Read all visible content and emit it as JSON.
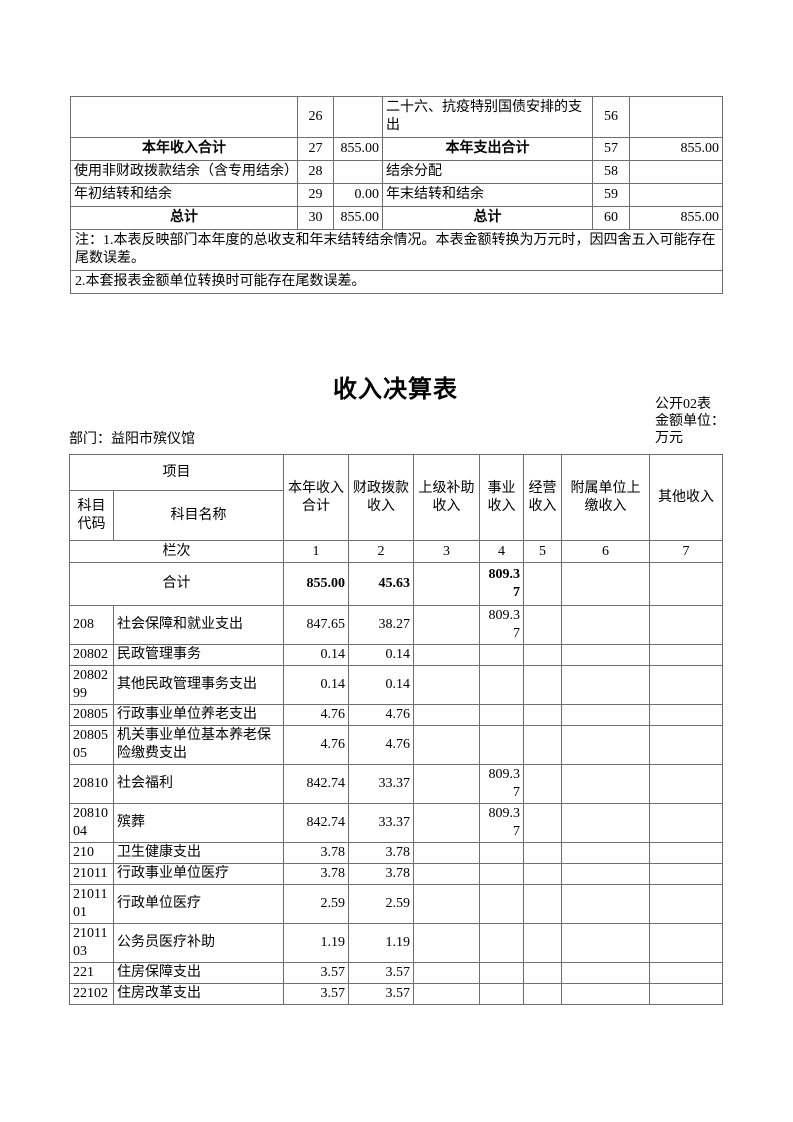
{
  "page": {
    "title": "收入决算表",
    "table_code": "公开02表",
    "unit_label": "金额单位：",
    "unit_value": "万元",
    "department": "部门：益阳市殡仪馆"
  },
  "summary_table": {
    "rows": [
      {
        "left_label": "",
        "left_no": "26",
        "left_amount": "",
        "right_label": "二十六、抗疫特别国债安排的支出",
        "right_no": "56",
        "right_amount": "",
        "emphasis": false
      },
      {
        "left_label": "本年收入合计",
        "left_no": "27",
        "left_amount": "855.00",
        "right_label": "本年支出合计",
        "right_no": "57",
        "right_amount": "855.00",
        "emphasis": true
      },
      {
        "left_label": "使用非财政拨款结余（含专用结余）",
        "left_no": "28",
        "left_amount": "",
        "right_label": "结余分配",
        "right_no": "58",
        "right_amount": "",
        "emphasis": false
      },
      {
        "left_label": "年初结转和结余",
        "left_no": "29",
        "left_amount": "0.00",
        "right_label": "年末结转和结余",
        "right_no": "59",
        "right_amount": "",
        "emphasis": false
      },
      {
        "left_label": "总计",
        "left_no": "30",
        "left_amount": "855.00",
        "right_label": "总计",
        "right_no": "60",
        "right_amount": "855.00",
        "emphasis": true
      }
    ],
    "notes": [
      "注：1.本表反映部门本年度的总收支和年末结转结余情况。本表金额转换为万元时，因四舍五入可能存在尾数误差。",
      "2.本套报表金额单位转换时可能存在尾数误差。"
    ]
  },
  "income_table": {
    "header": {
      "project": "项目",
      "code": "科目代码",
      "name": "科目名称",
      "columns": [
        "本年收入合计",
        "财政拨款收入",
        "上级补助收入",
        "事业收入",
        "经营收入",
        "附属单位上缴收入",
        "其他收入"
      ]
    },
    "colnum_label": "栏次",
    "column_numbers": [
      "1",
      "2",
      "3",
      "4",
      "5",
      "6",
      "7"
    ],
    "total_row": {
      "label": "合计",
      "values": [
        "855.00",
        "45.63",
        "",
        "809.37",
        "",
        "",
        ""
      ]
    },
    "rows": [
      {
        "code": "208",
        "name": "社会保障和就业支出",
        "values": [
          "847.65",
          "38.27",
          "",
          "809.37",
          "",
          "",
          ""
        ]
      },
      {
        "code": "20802",
        "name": "民政管理事务",
        "values": [
          "0.14",
          "0.14",
          "",
          "",
          "",
          "",
          ""
        ]
      },
      {
        "code": "2080299",
        "name": "其他民政管理事务支出",
        "values": [
          "0.14",
          "0.14",
          "",
          "",
          "",
          "",
          ""
        ]
      },
      {
        "code": "20805",
        "name": "行政事业单位养老支出",
        "values": [
          "4.76",
          "4.76",
          "",
          "",
          "",
          "",
          ""
        ]
      },
      {
        "code": "2080505",
        "name": "机关事业单位基本养老保险缴费支出",
        "values": [
          "4.76",
          "4.76",
          "",
          "",
          "",
          "",
          ""
        ]
      },
      {
        "code": "20810",
        "name": "社会福利",
        "values": [
          "842.74",
          "33.37",
          "",
          "809.37",
          "",
          "",
          ""
        ]
      },
      {
        "code": "2081004",
        "name": "殡葬",
        "values": [
          "842.74",
          "33.37",
          "",
          "809.37",
          "",
          "",
          ""
        ]
      },
      {
        "code": "210",
        "name": "卫生健康支出",
        "values": [
          "3.78",
          "3.78",
          "",
          "",
          "",
          "",
          ""
        ]
      },
      {
        "code": "21011",
        "name": "行政事业单位医疗",
        "values": [
          "3.78",
          "3.78",
          "",
          "",
          "",
          "",
          ""
        ]
      },
      {
        "code": "2101101",
        "name": "行政单位医疗",
        "values": [
          "2.59",
          "2.59",
          "",
          "",
          "",
          "",
          ""
        ]
      },
      {
        "code": "2101103",
        "name": "公务员医疗补助",
        "values": [
          "1.19",
          "1.19",
          "",
          "",
          "",
          "",
          ""
        ]
      },
      {
        "code": "221",
        "name": "住房保障支出",
        "values": [
          "3.57",
          "3.57",
          "",
          "",
          "",
          "",
          ""
        ]
      },
      {
        "code": "22102",
        "name": "住房改革支出",
        "values": [
          "3.57",
          "3.57",
          "",
          "",
          "",
          "",
          ""
        ]
      }
    ]
  }
}
